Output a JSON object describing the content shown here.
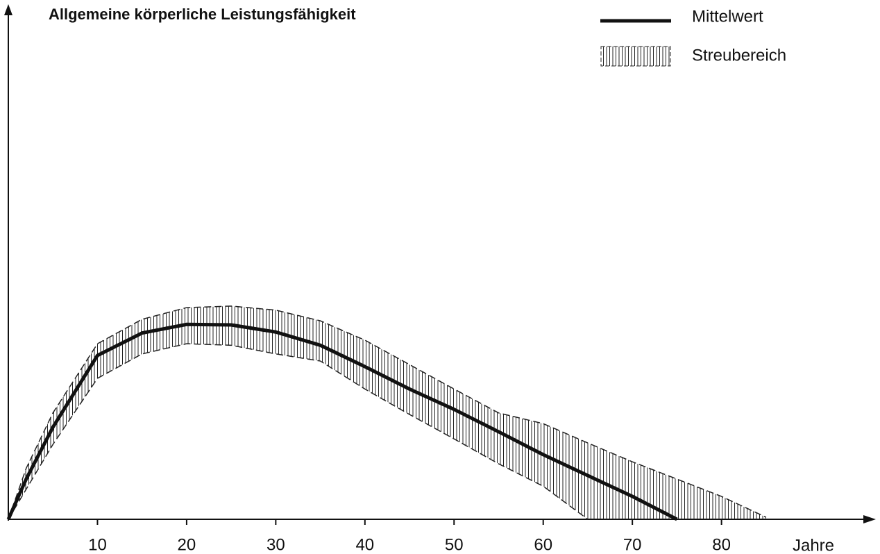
{
  "chart_data": {
    "type": "line",
    "title": "Allgemeine körperliche Leistungsfähigkeit",
    "x_label": "Jahre",
    "x": [
      0,
      2,
      5,
      10,
      15,
      20,
      25,
      30,
      35,
      40,
      45,
      50,
      55,
      60,
      65,
      70,
      75,
      80,
      85
    ],
    "series": [
      {
        "name": "Mittelwert",
        "color": "#111111",
        "values": [
          0,
          7.9,
          18.1,
          32.2,
          36.6,
          38.3,
          38.2,
          36.8,
          34.2,
          30.0,
          25.6,
          21.6,
          17.2,
          12.7,
          8.6,
          4.5,
          0,
          null,
          null
        ]
      }
    ],
    "band": {
      "name": "Streubereich",
      "color": "#222222",
      "upper": [
        0,
        10.0,
        20.9,
        34.5,
        39.3,
        41.6,
        41.9,
        41.1,
        39.0,
        35.2,
        30.4,
        25.6,
        20.9,
        18.8,
        15.0,
        11.3,
        7.9,
        4.5,
        0.4
      ],
      "lower": [
        0,
        5.9,
        14.7,
        27.7,
        32.5,
        34.5,
        34.2,
        32.5,
        31.1,
        25.6,
        20.6,
        15.8,
        10.9,
        6.5,
        0,
        null,
        null,
        null,
        null
      ]
    },
    "xlim": [
      0,
      97
    ],
    "xticks": [
      10,
      20,
      30,
      40,
      50,
      60,
      70,
      80
    ],
    "ylim": [
      0,
      100
    ],
    "grid": false
  }
}
